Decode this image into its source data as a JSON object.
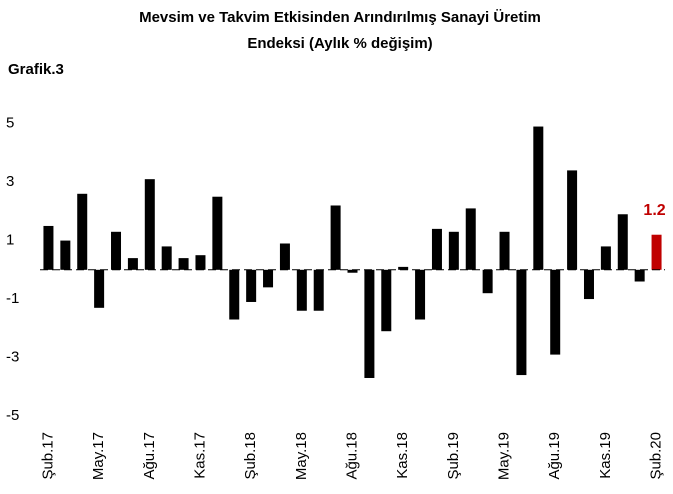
{
  "chart_data": {
    "type": "bar",
    "title": [
      "Mevsim ve Takvim Etkisinden Arındırılmış Sanayi Üretim",
      "Endeksi (Aylık % değişim)"
    ],
    "subtitle": "Grafik.3",
    "categories": [
      "Şub.17",
      null,
      null,
      "May.17",
      null,
      null,
      "Ağu.17",
      null,
      null,
      "Kas.17",
      null,
      null,
      "Şub.18",
      null,
      null,
      "May.18",
      null,
      null,
      "Ağu.18",
      null,
      null,
      "Kas.18",
      null,
      null,
      "Şub.19",
      null,
      null,
      "May.19",
      null,
      null,
      "Ağu.19",
      null,
      null,
      "Kas.19",
      null,
      null,
      "Şub.20"
    ],
    "values": [
      1.5,
      1.0,
      2.6,
      -1.3,
      1.3,
      0.4,
      3.1,
      0.8,
      0.4,
      0.5,
      2.5,
      -1.7,
      -1.1,
      -0.6,
      0.9,
      -1.4,
      -1.4,
      2.2,
      -0.1,
      -3.7,
      -2.1,
      0.1,
      -1.7,
      1.4,
      1.3,
      2.1,
      -0.8,
      1.3,
      -3.6,
      4.9,
      -2.9,
      3.4,
      -1.0,
      0.8,
      1.9,
      -0.4,
      1.2
    ],
    "colors": [
      "#000000",
      "#000000",
      "#000000",
      "#000000",
      "#000000",
      "#000000",
      "#000000",
      "#000000",
      "#000000",
      "#000000",
      "#000000",
      "#000000",
      "#000000",
      "#000000",
      "#000000",
      "#000000",
      "#000000",
      "#000000",
      "#000000",
      "#000000",
      "#000000",
      "#000000",
      "#000000",
      "#000000",
      "#000000",
      "#000000",
      "#000000",
      "#000000",
      "#000000",
      "#000000",
      "#000000",
      "#000000",
      "#000000",
      "#000000",
      "#000000",
      "#000000",
      "#c00000"
    ],
    "show_value_label": "last",
    "ylim": [
      -5,
      5.5
    ],
    "yticks": [
      5,
      3,
      1,
      -1,
      -3,
      -5
    ],
    "zero_line": "dashed"
  }
}
